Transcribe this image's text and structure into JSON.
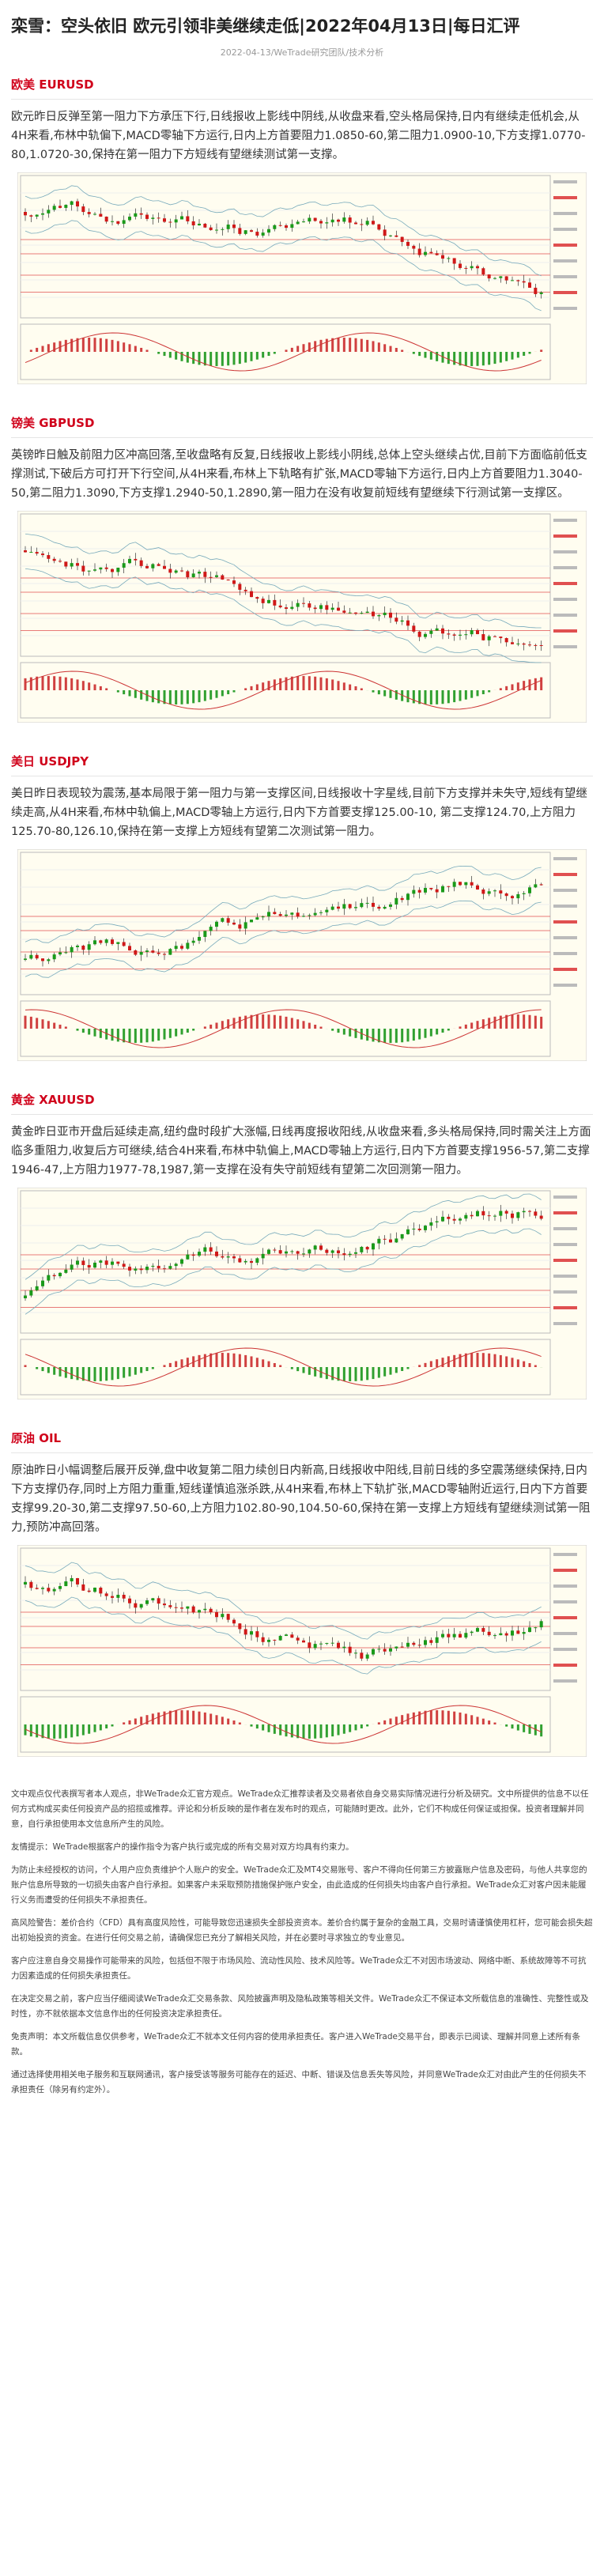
{
  "header": {
    "title": "栾雪：空头依旧 欧元引领非美继续走低|2022年04月13日|每日汇评",
    "meta": "2022-04-13/WeTrade研究团队/技术分析"
  },
  "sections": [
    {
      "heading": "欧美 EURUSD",
      "body": "欧元昨日反弹至第一阻力下方承压下行,日线报收上影线中阴线,从收盘来看,空头格局保持,日内有继续走低机会,从4H来看,布林中轨偏下,MACD零轴下方运行,日内上方首要阻力1.0850-60,第二阻力1.0900-10,下方支撑1.0770-80,1.0720-30,保持在第一阻力下方短线有望继续测试第一支撑。"
    },
    {
      "heading": "镑美 GBPUSD",
      "body": "英镑昨日触及前阻力区冲高回落,至收盘略有反复,日线报收上影线小阴线,总体上空头继续占优,目前下方面临前低支撑测试,下破后方可打开下行空间,从4H来看,布林上下轨略有扩张,MACD零轴下方运行,日内上方首要阻力1.3040-50,第二阻力1.3090,下方支撑1.2940-50,1.2890,第一阻力在没有收复前短线有望继续下行测试第一支撑区。"
    },
    {
      "heading": "美日 USDJPY",
      "body": "美日昨日表现较为震荡,基本局限于第一阻力与第一支撑区间,日线报收十字星线,目前下方支撑并未失守,短线有望继续走高,从4H来看,布林中轨偏上,MACD零轴上方运行,日内下方首要支撑125.00-10, 第二支撑124.70,上方阻力125.70-80,126.10,保持在第一支撑上方短线有望第二次测试第一阻力。"
    },
    {
      "heading": "黄金 XAUUSD",
      "body": "黄金昨日亚市开盘后延续走高,纽约盘时段扩大涨幅,日线再度报收阳线,从收盘来看,多头格局保持,同时需关注上方面临多重阻力,收复后方可继续,结合4H来看,布林中轨偏上,MACD零轴上方运行,日内下方首要支撑1956-57,第二支撑1946-47,上方阻力1977-78,1987,第一支撑在没有失守前短线有望第二次回测第一阻力。"
    },
    {
      "heading": "原油 OIL",
      "body": "原油昨日小幅调整后展开反弹,盘中收复第二阻力续创日内新高,日线报收中阳线,目前日线的多空震荡继续保持,日内下方支撑仍存,同时上方阻力重重,短线谨慎追涨杀跌,从4H来看,布林上下轨扩张,MACD零轴附近运行,日内下方首要支撑99.20-30,第二支撑97.50-60,上方阻力102.80-90,104.50-60,保持在第一支撑上方短线有望继续测试第一阻力,预防冲高回落。"
    }
  ],
  "disclaimer": [
    "文中观点仅代表撰写者本人观点，非WeTrade众汇官方观点。WeTrade众汇推荐读者及交易者依自身交易实际情况进行分析及研究。文中所提供的信息不以任何方式构成买卖任何投资产品的招揽或推荐。评论和分析反映的是作者在发布时的观点，可能随时更改。此外，它们不构成任何保证或担保。投资者理解并同意，自行承担使用本文信息所产生的风险。",
    "友情提示：WeTrade根据客户的操作指令为客户执行或完成的所有交易对双方均具有约束力。",
    "为防止未经授权的访问，个人用户应负责维护个人账户的安全。WeTrade众汇及MT4交易账号、客户不得向任何第三方披露账户信息及密码，与他人共享您的账户信息所导致的一切损失由客户自行承担。如果客户未采取预防措施保护账户安全，由此造成的任何损失均由客户自行承担。WeTrade众汇对客户因未能履行义务而遭受的任何损失不承担责任。",
    "高风险警告：差价合约（CFD）具有高度风险性，可能导致您迅速损失全部投资资本。差价合约属于复杂的金融工具，交易时请谨慎使用杠杆，您可能会损失超出初始投资的资金。在进行任何交易之前，请确保您已充分了解相关风险，并在必要时寻求独立的专业意见。",
    "客户应注意自身交易操作可能带来的风险，包括但不限于市场风险、流动性风险、技术风险等。WeTrade众汇不对因市场波动、网络中断、系统故障等不可抗力因素造成的任何损失承担责任。",
    "在决定交易之前，客户应当仔细阅读WeTrade众汇交易条款、风险披露声明及隐私政策等相关文件。WeTrade众汇不保证本文所载信息的准确性、完整性或及时性，亦不就依据本文信息作出的任何投资决定承担责任。",
    "免责声明：本文所载信息仅供参考，WeTrade众汇不就本文任何内容的使用承担责任。客户进入WeTrade交易平台，即表示已阅读、理解并同意上述所有条款。",
    "通过选择使用相关电子服务和互联网通讯，客户接受该等服务可能存在的延迟、中断、错误及信息丢失等风险，并同意WeTrade众汇对由此产生的任何损失不承担责任（除另有约定外）。"
  ]
}
